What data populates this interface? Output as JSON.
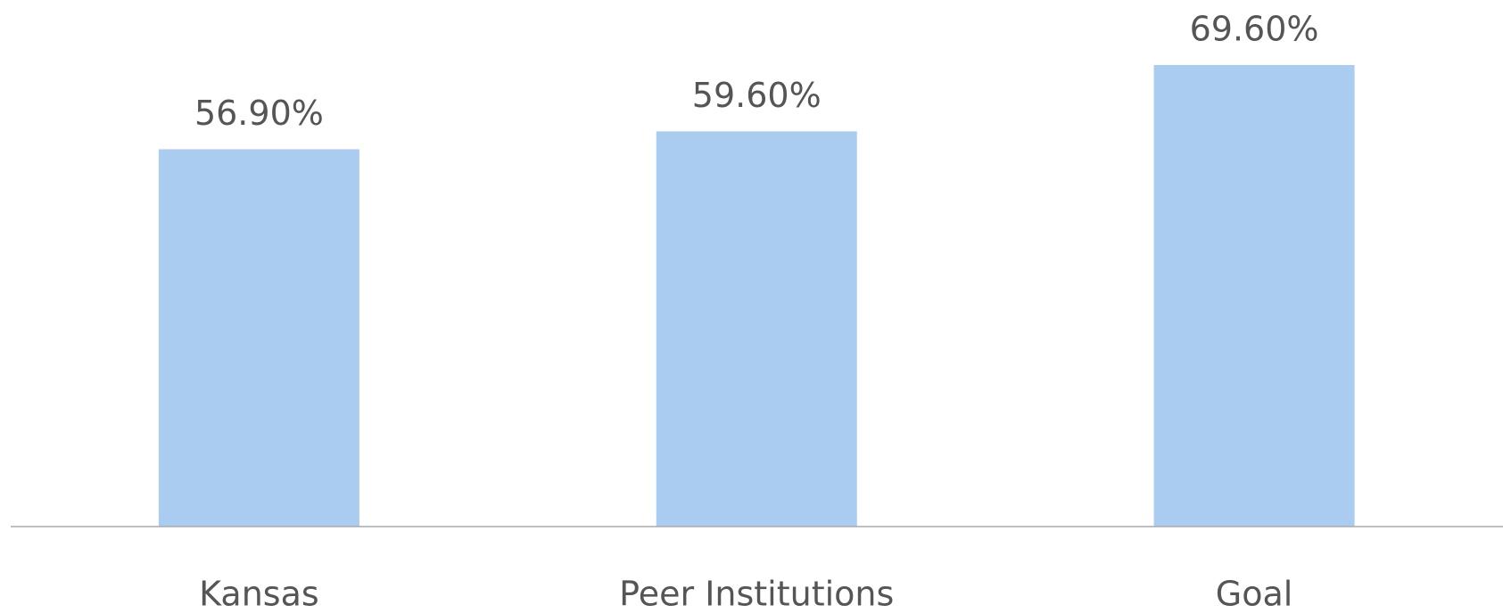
{
  "chart_data": {
    "type": "bar",
    "categories": [
      "Kansas",
      "Peer Institutions",
      "Goal"
    ],
    "values": [
      56.9,
      59.6,
      69.6
    ],
    "value_labels": [
      "56.90%",
      "59.60%",
      "69.60%"
    ],
    "color": "#aaccf0"
  }
}
